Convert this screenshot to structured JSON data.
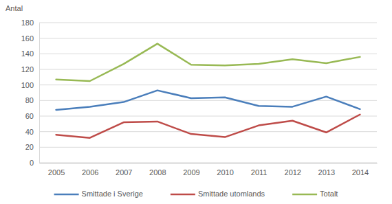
{
  "chart_data": {
    "type": "line",
    "y_label": "Antal",
    "categories": [
      "2005",
      "2006",
      "2007",
      "2008",
      "2009",
      "2010",
      "2011",
      "2012",
      "2013",
      "2014"
    ],
    "series": [
      {
        "name": "Smittade i Sverige",
        "color": "#4a7ebb",
        "values": [
          68,
          72,
          78,
          93,
          83,
          84,
          73,
          72,
          85,
          69
        ]
      },
      {
        "name": "Smittade utomlands",
        "color": "#be4b48",
        "values": [
          36,
          32,
          52,
          53,
          37,
          33,
          48,
          54,
          39,
          62
        ]
      },
      {
        "name": "Totalt",
        "color": "#98b954",
        "values": [
          107,
          105,
          127,
          153,
          126,
          125,
          127,
          133,
          128,
          136
        ]
      }
    ],
    "ylim": [
      0,
      180
    ],
    "yticks": [
      0,
      20,
      40,
      60,
      80,
      100,
      120,
      140,
      160,
      180
    ],
    "grid": true,
    "legend": "bottom"
  }
}
